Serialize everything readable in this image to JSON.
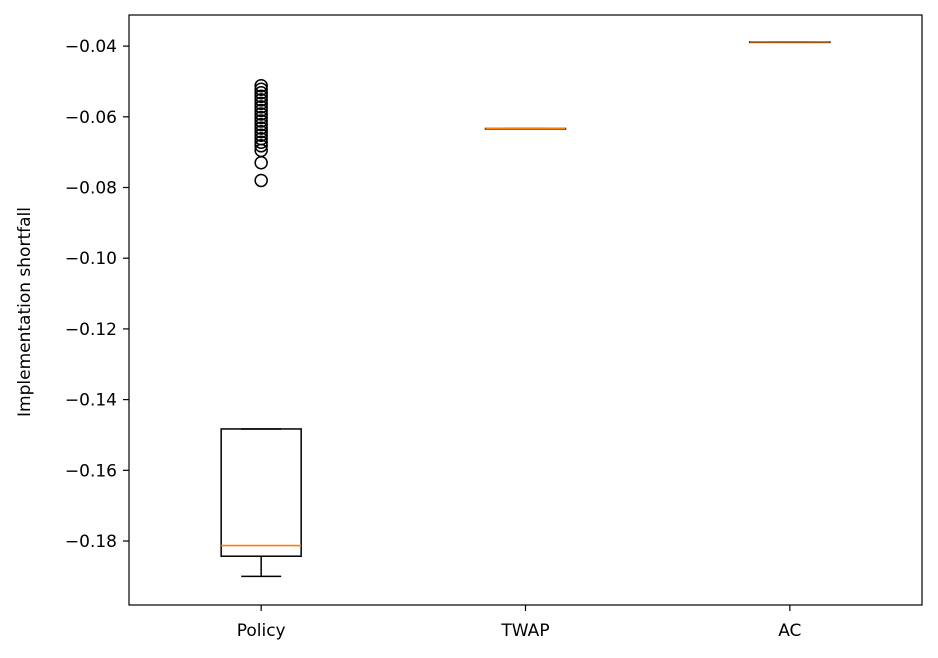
{
  "chart_data": {
    "type": "box",
    "ylabel": "Implementation shortfall",
    "xlabel": "",
    "ylim": [
      -0.1981,
      -0.0312
    ],
    "grid": false,
    "legend": "none",
    "categories": [
      "Policy",
      "TWAP",
      "AC"
    ],
    "yticks": [
      -0.04,
      -0.06,
      -0.08,
      -0.1,
      -0.12,
      -0.14,
      -0.16,
      -0.18
    ],
    "ytick_labels": [
      "−0.04",
      "−0.06",
      "−0.08",
      "−0.10",
      "−0.12",
      "−0.14",
      "−0.16",
      "−0.18"
    ],
    "boxes": [
      {
        "category": "Policy",
        "whisker_low": -0.19,
        "q1": -0.1843,
        "median": -0.1813,
        "q3": -0.1483,
        "whisker_high": -0.1483,
        "outliers": [
          -0.0512,
          -0.0522,
          -0.0532,
          -0.0542,
          -0.0552,
          -0.0562,
          -0.0572,
          -0.0582,
          -0.0592,
          -0.0602,
          -0.0612,
          -0.0622,
          -0.0632,
          -0.0642,
          -0.0652,
          -0.0662,
          -0.0672,
          -0.0682,
          -0.0695,
          -0.073,
          -0.078
        ]
      },
      {
        "category": "TWAP",
        "whisker_low": -0.0633,
        "q1": -0.0633,
        "median": -0.0633,
        "q3": -0.0633,
        "whisker_high": -0.0633,
        "outliers": []
      },
      {
        "category": "AC",
        "whisker_low": -0.0388,
        "q1": -0.0388,
        "median": -0.0388,
        "q3": -0.0388,
        "whisker_high": -0.0388,
        "outliers": []
      }
    ],
    "colors": {
      "box": "#000000",
      "median": "#ff7f0e",
      "outlier": "#000000"
    }
  }
}
